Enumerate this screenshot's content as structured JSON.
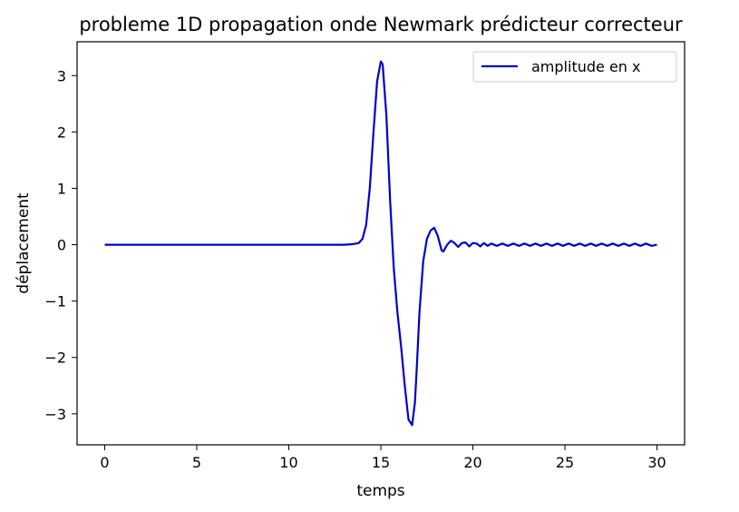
{
  "chart_data": {
    "type": "line",
    "title": "probleme 1D propagation onde Newmark prédicteur correcteur",
    "xlabel": "temps",
    "ylabel": "déplacement",
    "xlim": [
      -1.5,
      31.5
    ],
    "ylim": [
      -3.55,
      3.6
    ],
    "xticks": [
      0,
      5,
      10,
      15,
      20,
      25,
      30
    ],
    "xtick_labels": [
      "0",
      "5",
      "10",
      "15",
      "20",
      "25",
      "30"
    ],
    "yticks": [
      3,
      2,
      1,
      0,
      -1,
      -2,
      -3
    ],
    "ytick_labels": [
      "3",
      "2",
      "1",
      "0",
      "−1",
      "−2",
      "−3"
    ],
    "grid": false,
    "legend_position": "top-right",
    "series": [
      {
        "name": "amplitude en x",
        "color": "#0000cc",
        "x": [
          0,
          5,
          10,
          13.0,
          13.5,
          13.8,
          14.0,
          14.2,
          14.4,
          14.6,
          14.8,
          15.0,
          15.1,
          15.3,
          15.5,
          15.7,
          15.9,
          16.1,
          16.3,
          16.5,
          16.7,
          16.85,
          16.95,
          17.1,
          17.3,
          17.5,
          17.7,
          17.9,
          18.1,
          18.3,
          18.4,
          18.6,
          18.8,
          19.0,
          19.2,
          19.4,
          19.6,
          19.8,
          20.0,
          20.2,
          20.4,
          20.6,
          20.8,
          21.0,
          21.3,
          21.6,
          21.9,
          22.2,
          22.5,
          22.8,
          23.1,
          23.4,
          23.7,
          24.0,
          24.3,
          24.6,
          24.9,
          25.2,
          25.5,
          25.8,
          26.1,
          26.4,
          26.7,
          27.0,
          27.3,
          27.6,
          27.9,
          28.2,
          28.5,
          28.8,
          29.1,
          29.4,
          29.7,
          30.0
        ],
        "y": [
          0,
          0,
          0,
          0,
          0.01,
          0.03,
          0.1,
          0.35,
          1.0,
          2.0,
          2.9,
          3.25,
          3.2,
          2.3,
          0.8,
          -0.4,
          -1.2,
          -1.8,
          -2.5,
          -3.1,
          -3.2,
          -2.8,
          -2.2,
          -1.2,
          -0.3,
          0.1,
          0.25,
          0.3,
          0.15,
          -0.1,
          -0.12,
          0.0,
          0.07,
          0.03,
          -0.04,
          0.03,
          0.04,
          -0.03,
          0.03,
          0.02,
          -0.03,
          0.03,
          -0.02,
          0.02,
          -0.02,
          0.02,
          -0.02,
          0.02,
          -0.02,
          0.02,
          -0.02,
          0.02,
          -0.02,
          0.02,
          -0.02,
          0.02,
          -0.02,
          0.02,
          -0.02,
          0.02,
          -0.02,
          0.02,
          -0.02,
          0.02,
          -0.02,
          0.02,
          -0.02,
          0.02,
          -0.02,
          0.02,
          -0.02,
          0.02,
          -0.02,
          0
        ]
      }
    ]
  }
}
